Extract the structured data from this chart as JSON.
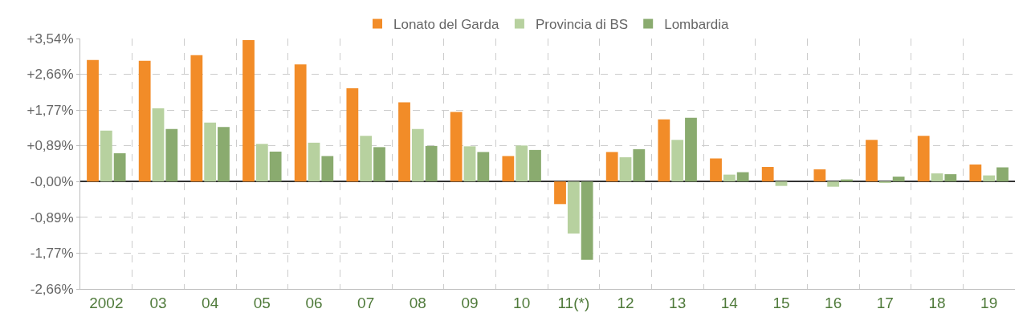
{
  "chart_data": {
    "type": "bar",
    "categories": [
      "2002",
      "03",
      "04",
      "05",
      "06",
      "07",
      "08",
      "09",
      "10",
      "11(*)",
      "12",
      "13",
      "14",
      "15",
      "16",
      "17",
      "18",
      "19"
    ],
    "series": [
      {
        "name": "Lonato del Garda",
        "color": "#f28c28",
        "values": [
          3.01,
          2.99,
          3.13,
          3.5,
          2.9,
          2.31,
          1.96,
          1.72,
          0.63,
          -0.56,
          0.73,
          1.54,
          0.57,
          0.36,
          0.3,
          1.03,
          1.13,
          0.42
        ]
      },
      {
        "name": "Provincia di BS",
        "color": "#b7d19f",
        "values": [
          1.26,
          1.81,
          1.46,
          0.93,
          0.96,
          1.13,
          1.3,
          0.87,
          0.89,
          -1.29,
          0.6,
          1.03,
          0.17,
          -0.11,
          -0.13,
          -0.02,
          0.2,
          0.15
        ]
      },
      {
        "name": "Lombardia",
        "color": "#8aab6f",
        "values": [
          0.7,
          1.3,
          1.35,
          0.74,
          0.63,
          0.85,
          0.88,
          0.73,
          0.78,
          -1.94,
          0.8,
          1.58,
          0.23,
          0.0,
          0.05,
          0.12,
          0.18,
          0.35
        ]
      }
    ],
    "ylim": [
      -2.66,
      3.54
    ],
    "yticks": [
      {
        "value": 3.54,
        "label": "+3,54%"
      },
      {
        "value": 2.66,
        "label": "+2,66%"
      },
      {
        "value": 1.77,
        "label": "+1,77%"
      },
      {
        "value": 0.89,
        "label": "+0,89%"
      },
      {
        "value": 0,
        "label": "-0,00%"
      },
      {
        "value": -0.89,
        "label": "-0,89%"
      },
      {
        "value": -1.77,
        "label": "-1,77%"
      },
      {
        "value": -2.66,
        "label": "-2,66%"
      }
    ],
    "grid": true,
    "legend": "top"
  }
}
